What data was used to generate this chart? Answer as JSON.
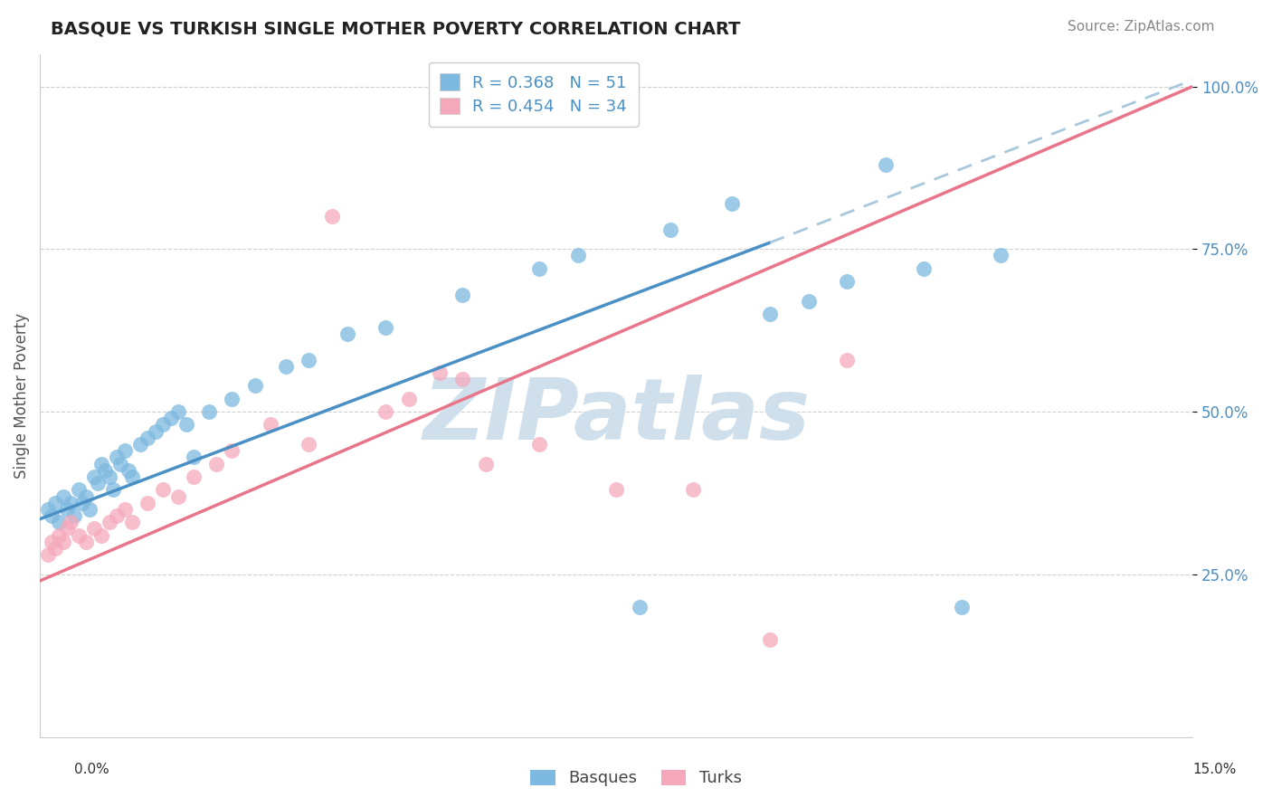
{
  "title": "BASQUE VS TURKISH SINGLE MOTHER POVERTY CORRELATION CHART",
  "source": "Source: ZipAtlas.com",
  "ylabel": "Single Mother Poverty",
  "x_min": 0.0,
  "x_max": 15.0,
  "y_min": 0.0,
  "y_max": 105.0,
  "yticks": [
    25.0,
    50.0,
    75.0,
    100.0
  ],
  "ytick_labels": [
    "25.0%",
    "50.0%",
    "75.0%",
    "100.0%"
  ],
  "xtick_left_label": "0.0%",
  "xtick_right_label": "15.0%",
  "basque_R": 0.368,
  "basque_N": 51,
  "turkish_R": 0.454,
  "turkish_N": 34,
  "basque_color": "#7db9e0",
  "turkish_color": "#f5a8bb",
  "basque_line_color": "#4a90c4",
  "turkish_line_color": "#e8758a",
  "dashed_line_color": "#a8c8dc",
  "watermark_color": "#cfe0ec",
  "legend_label_basque": "Basques",
  "legend_label_turkish": "Turks",
  "basque_x": [
    0.1,
    0.15,
    0.2,
    0.25,
    0.3,
    0.35,
    0.4,
    0.45,
    0.5,
    0.55,
    0.6,
    0.65,
    0.7,
    0.75,
    0.8,
    0.85,
    0.9,
    0.95,
    1.0,
    1.05,
    1.1,
    1.15,
    1.2,
    1.3,
    1.4,
    1.5,
    1.6,
    1.7,
    1.8,
    1.9,
    2.0,
    2.2,
    2.5,
    2.8,
    3.2,
    3.5,
    4.0,
    4.5,
    5.5,
    6.5,
    7.0,
    7.8,
    8.2,
    9.0,
    9.5,
    10.0,
    10.5,
    11.0,
    11.5,
    12.0,
    12.5
  ],
  "basque_y": [
    35,
    34,
    36,
    33,
    37,
    35,
    36,
    34,
    38,
    36,
    37,
    35,
    40,
    39,
    42,
    41,
    40,
    38,
    43,
    42,
    44,
    41,
    40,
    45,
    46,
    47,
    48,
    49,
    50,
    48,
    43,
    50,
    52,
    54,
    57,
    58,
    62,
    63,
    68,
    72,
    74,
    20,
    78,
    82,
    65,
    67,
    70,
    88,
    72,
    20,
    74
  ],
  "turkish_x": [
    0.1,
    0.15,
    0.2,
    0.25,
    0.3,
    0.35,
    0.4,
    0.5,
    0.6,
    0.7,
    0.8,
    0.9,
    1.0,
    1.1,
    1.2,
    1.4,
    1.6,
    1.8,
    2.0,
    2.3,
    2.5,
    3.0,
    3.5,
    3.8,
    4.5,
    4.8,
    5.2,
    5.5,
    5.8,
    6.5,
    7.5,
    8.5,
    9.5,
    10.5
  ],
  "turkish_y": [
    28,
    30,
    29,
    31,
    30,
    32,
    33,
    31,
    30,
    32,
    31,
    33,
    34,
    35,
    33,
    36,
    38,
    37,
    40,
    42,
    44,
    48,
    45,
    80,
    50,
    52,
    56,
    55,
    42,
    45,
    38,
    38,
    15,
    58
  ],
  "basque_line_x0": 0.0,
  "basque_line_y0": 33.5,
  "basque_line_x1": 9.5,
  "basque_line_y1": 76.0,
  "turkish_line_x0": 0.0,
  "turkish_line_y0": 24.0,
  "turkish_line_x1": 15.0,
  "turkish_line_y1": 100.0,
  "dashed_line_x0": 9.5,
  "dashed_line_y0": 76.0,
  "dashed_line_x1": 15.0,
  "dashed_line_y1": 101.0,
  "top_dotted_y": 100.0
}
